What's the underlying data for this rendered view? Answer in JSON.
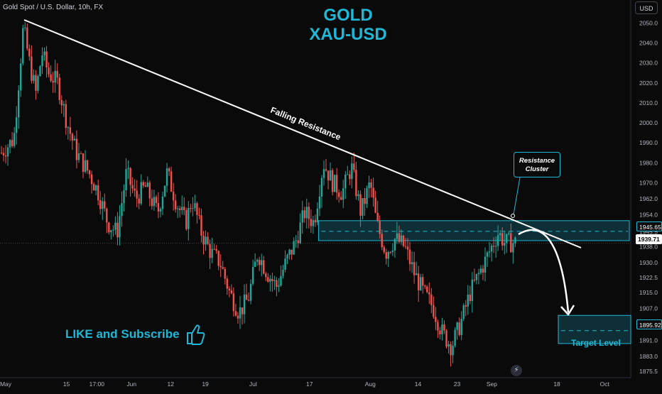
{
  "header": {
    "symbol_title": "Gold Spot / U.S. Dollar, 10h, FX",
    "headline_line1": "GOLD",
    "headline_line2": "XAU-USD",
    "currency": "USD"
  },
  "annotations": {
    "falling_resistance": "Falling Resistance",
    "resistance_cluster_line1": "Resistance",
    "resistance_cluster_line2": "Cluster",
    "target_level": "Target Level",
    "like_subscribe": "LIKE and Subscribe"
  },
  "price_tags": {
    "cluster": "1945.65",
    "last": "1939.71",
    "target": "1895.92"
  },
  "colors": {
    "up": "#26a69a",
    "down": "#ef5350",
    "accent": "#1fb8d6",
    "background": "#0a0a0a",
    "axis_text": "#b2b5be"
  },
  "chart_data": {
    "type": "candlestick",
    "title": "Gold Spot / U.S. Dollar, 10h, FX",
    "ylim": [
      1872,
      2056
    ],
    "y_ticks": [
      2050.0,
      2040.0,
      2030.0,
      2020.0,
      2010.0,
      2000.0,
      1990.0,
      1980.0,
      1970.0,
      1962.0,
      1954.0,
      1945.5,
      1938.0,
      1930.0,
      1922.5,
      1915.0,
      1907.0,
      1899.0,
      1891.0,
      1883.0,
      1875.5
    ],
    "x_ticks": [
      "May",
      "15",
      "17:00",
      "Jun",
      "12",
      "19",
      "Jul",
      "17",
      "Aug",
      "14",
      "23",
      "Sep",
      "18",
      "Oct"
    ],
    "x_tick_positions": [
      0,
      0.0972,
      0.1458,
      0.2014,
      0.2639,
      0.3194,
      0.3958,
      0.4861,
      0.5833,
      0.6597,
      0.7222,
      0.7778,
      0.8819,
      0.9583
    ],
    "price_path": [
      [
        0.0,
        1985
      ],
      [
        0.02,
        1992
      ],
      [
        0.035,
        2048
      ],
      [
        0.045,
        2030
      ],
      [
        0.055,
        2015
      ],
      [
        0.065,
        2035
      ],
      [
        0.075,
        2025
      ],
      [
        0.09,
        2020
      ],
      [
        0.105,
        2000
      ],
      [
        0.12,
        1985
      ],
      [
        0.14,
        1975
      ],
      [
        0.155,
        1965
      ],
      [
        0.17,
        1950
      ],
      [
        0.185,
        1945
      ],
      [
        0.2,
        1975
      ],
      [
        0.215,
        1962
      ],
      [
        0.23,
        1968
      ],
      [
        0.25,
        1955
      ],
      [
        0.265,
        1975
      ],
      [
        0.28,
        1960
      ],
      [
        0.295,
        1950
      ],
      [
        0.305,
        1962
      ],
      [
        0.32,
        1945
      ],
      [
        0.335,
        1935
      ],
      [
        0.35,
        1930
      ],
      [
        0.365,
        1915
      ],
      [
        0.38,
        1905
      ],
      [
        0.395,
        1912
      ],
      [
        0.41,
        1935
      ],
      [
        0.425,
        1925
      ],
      [
        0.44,
        1918
      ],
      [
        0.455,
        1930
      ],
      [
        0.47,
        1940
      ],
      [
        0.485,
        1955
      ],
      [
        0.5,
        1950
      ],
      [
        0.515,
        1980
      ],
      [
        0.53,
        1970
      ],
      [
        0.545,
        1965
      ],
      [
        0.56,
        1978
      ],
      [
        0.575,
        1955
      ],
      [
        0.59,
        1970
      ],
      [
        0.6,
        1950
      ],
      [
        0.615,
        1935
      ],
      [
        0.63,
        1942
      ],
      [
        0.645,
        1938
      ],
      [
        0.66,
        1925
      ],
      [
        0.675,
        1915
      ],
      [
        0.69,
        1908
      ],
      [
        0.705,
        1895
      ],
      [
        0.72,
        1888
      ],
      [
        0.735,
        1900
      ],
      [
        0.75,
        1915
      ],
      [
        0.765,
        1925
      ],
      [
        0.78,
        1935
      ],
      [
        0.795,
        1945
      ],
      [
        0.805,
        1940
      ]
    ],
    "falling_resistance": {
      "x0": 0.04,
      "y0": 2052,
      "x1": 0.93,
      "y1": 1935
    },
    "resistance_zone": {
      "from": 1941,
      "to": 1951,
      "mid": 1945.65,
      "x0": 0.505,
      "x1": 1.0
    },
    "target_zone": {
      "from": 1893,
      "to": 1900,
      "mid": 1895.92,
      "x0": 0.885,
      "x1": 1.0
    },
    "last_price": 1939.71
  }
}
